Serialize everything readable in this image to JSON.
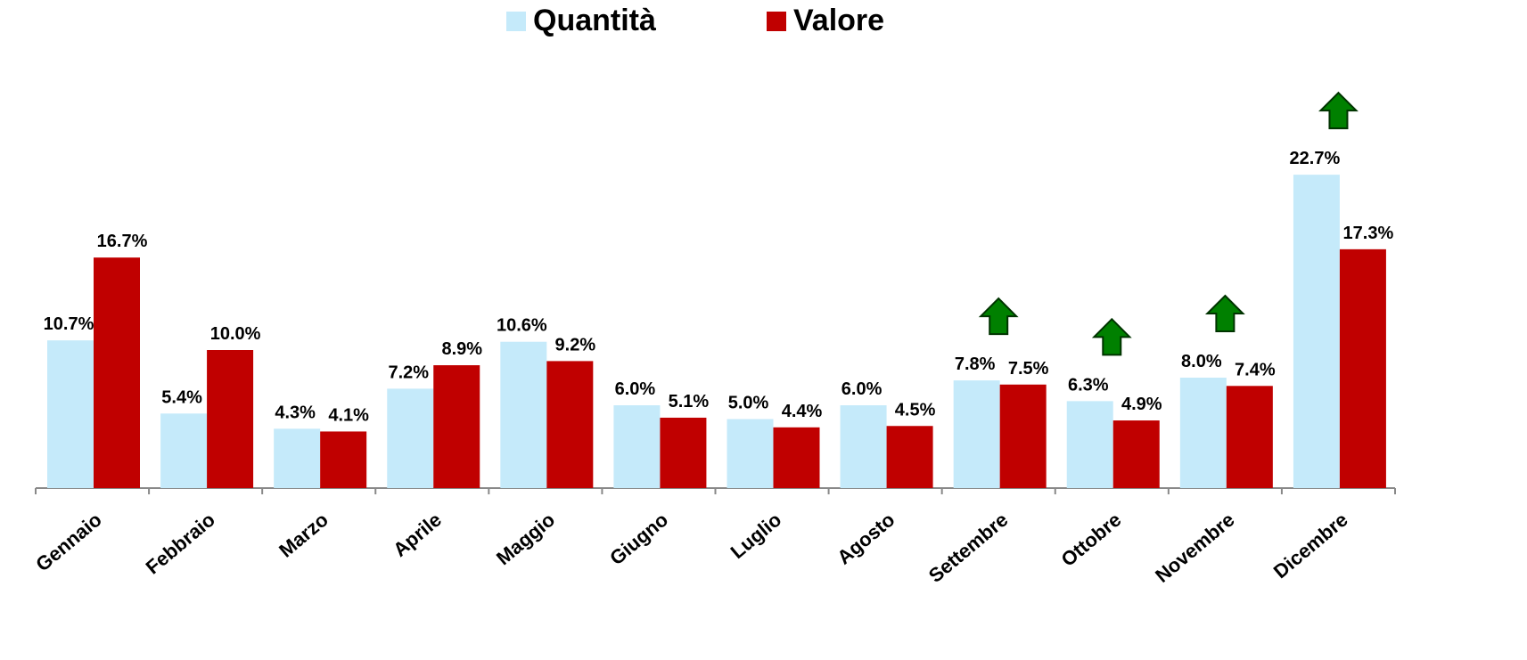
{
  "chart_data": {
    "type": "bar",
    "categories": [
      "Gennaio",
      "Febbraio",
      "Marzo",
      "Aprile",
      "Maggio",
      "Giugno",
      "Luglio",
      "Agosto",
      "Settembre",
      "Ottobre",
      "Novembre",
      "Dicembre"
    ],
    "series": [
      {
        "name": "Quantità",
        "color": "#c5eafa",
        "values": [
          10.7,
          5.4,
          4.3,
          7.2,
          10.6,
          6.0,
          5.0,
          6.0,
          7.8,
          6.3,
          8.0,
          22.7
        ],
        "value_labels": [
          "10.7%",
          "5.4%",
          "4.3%",
          "7.2%",
          "10.6%",
          "6.0%",
          "5.0%",
          "6.0%",
          "7.8%",
          "6.3%",
          "8.0%",
          "22.7%"
        ]
      },
      {
        "name": "Valore",
        "color": "#c00000",
        "values": [
          16.7,
          10.0,
          4.1,
          8.9,
          9.2,
          5.1,
          4.4,
          4.5,
          7.5,
          4.9,
          7.4,
          17.3
        ],
        "value_labels": [
          "16.7%",
          "10.0%",
          "4.1%",
          "8.9%",
          "9.2%",
          "5.1%",
          "4.4%",
          "4.5%",
          "7.5%",
          "4.9%",
          "7.4%",
          "17.3%"
        ]
      }
    ],
    "legend": "top"
  }
}
